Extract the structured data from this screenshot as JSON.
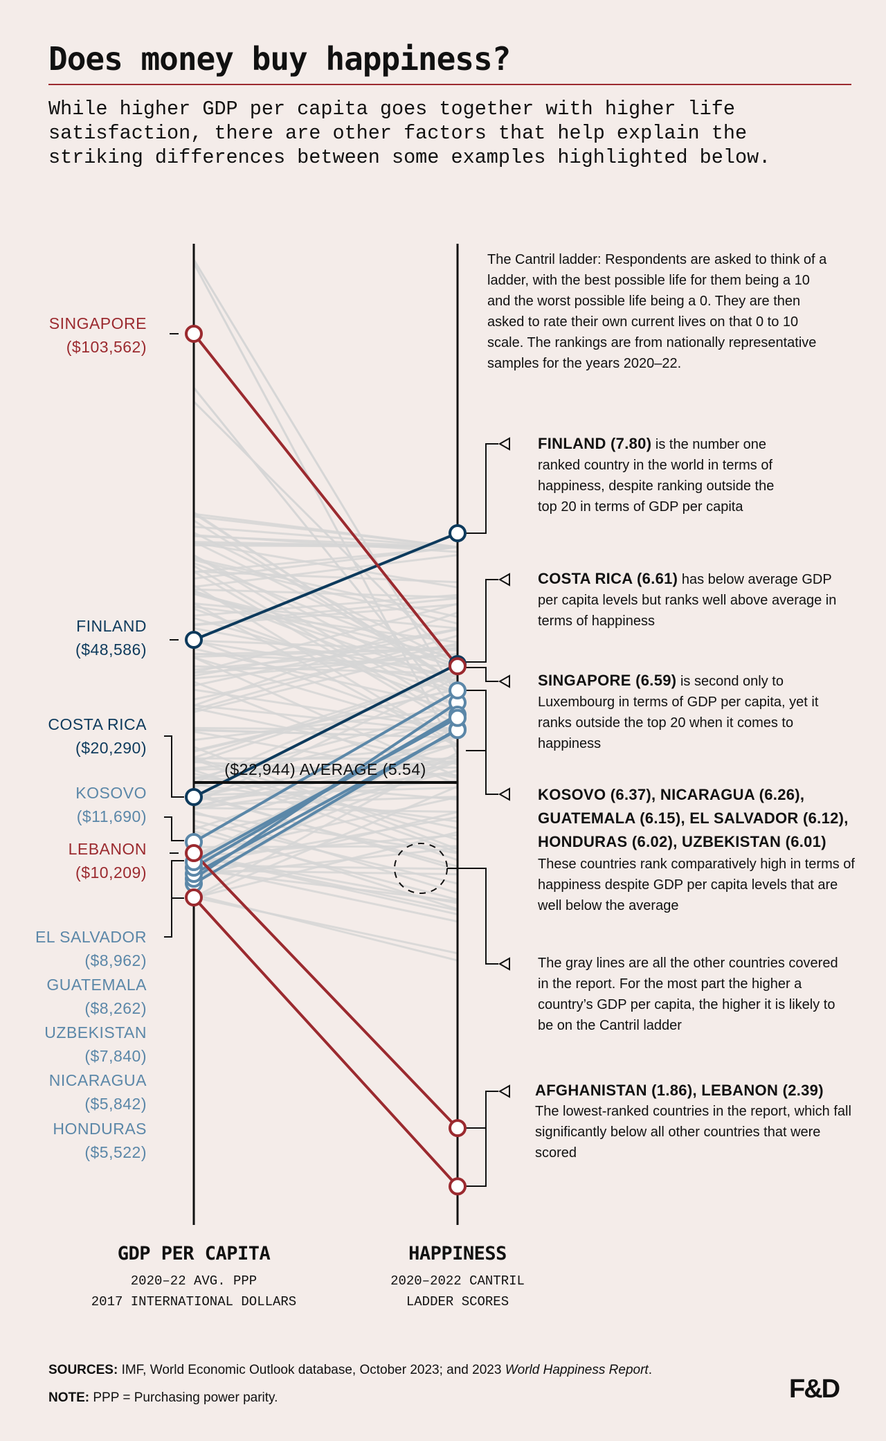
{
  "header": {
    "title": "Does money buy happiness?",
    "subtitle": "While higher GDP per capita goes together with higher life\nsatisfaction, there are other factors that help explain the\nstriking differences between some examples highlighted below."
  },
  "chart_data": {
    "type": "slope",
    "title": "Does money buy happiness?",
    "left_axis": {
      "label": "GDP PER CAPITA",
      "sublabel": "2020–22 AVG. PPP\n2017 INTERNATIONAL DOLLARS"
    },
    "right_axis": {
      "label": "HAPPINESS",
      "sublabel": "2020–2022 CANTRIL\nLADDER SCORES"
    },
    "average": {
      "gdp": 22944,
      "happiness": 5.54,
      "label": "($22,944) AVERAGE (5.54)"
    },
    "colors": {
      "red": "#9b2a2f",
      "navy": "#0d3a5c",
      "steel": "#5b87a8",
      "gray": "#d6d6d6",
      "axis": "#111111"
    },
    "countries": [
      {
        "id": "singapore",
        "name": "SINGAPORE",
        "gdp": 103562,
        "gdp_label": "($103,562)",
        "happiness": 6.59,
        "color": "red"
      },
      {
        "id": "finland",
        "name": "FINLAND",
        "gdp": 48586,
        "gdp_label": "($48,586)",
        "happiness": 7.8,
        "color": "navy"
      },
      {
        "id": "costa_rica",
        "name": "COSTA RICA",
        "gdp": 20290,
        "gdp_label": "($20,290)",
        "happiness": 6.61,
        "color": "navy"
      },
      {
        "id": "kosovo",
        "name": "KOSOVO",
        "gdp": 11690,
        "gdp_label": "($11,690)",
        "happiness": 6.37,
        "color": "steel"
      },
      {
        "id": "lebanon",
        "name": "LEBANON",
        "gdp": 10209,
        "gdp_label": "($10,209)",
        "happiness": 2.39,
        "color": "red"
      },
      {
        "id": "el_salvador",
        "name": "EL SALVADOR",
        "gdp": 8962,
        "gdp_label": "($8,962)",
        "happiness": 6.12,
        "color": "steel"
      },
      {
        "id": "guatemala",
        "name": "GUATEMALA",
        "gdp": 8262,
        "gdp_label": "($8,262)",
        "happiness": 6.15,
        "color": "steel"
      },
      {
        "id": "uzbekistan",
        "name": "UZBEKISTAN",
        "gdp": 7840,
        "gdp_label": "($7,840)",
        "happiness": 6.01,
        "color": "steel"
      },
      {
        "id": "nicaragua",
        "name": "NICARAGUA",
        "gdp": 5842,
        "gdp_label": "($5,842)",
        "happiness": 6.26,
        "color": "steel"
      },
      {
        "id": "honduras",
        "name": "HONDURAS",
        "gdp": 5522,
        "gdp_label": "($5,522)",
        "happiness": 6.02,
        "color": "steel"
      },
      {
        "id": "afghanistan",
        "name": "AFGHANISTAN",
        "gdp": null,
        "gdp_label": null,
        "happiness": 1.86,
        "color": "red"
      }
    ]
  },
  "annotations": {
    "cantril": "The Cantril ladder: Respondents are asked to think of a ladder, with the best possible life for them being a 10 and the worst possible life being a 0. They are then asked to rate their own current lives on that 0 to 10 scale. The rankings are from nationally representative samples for the years 2020–22.",
    "finland": {
      "head": "FINLAND (7.80)",
      "body": " is the number one ranked country in the world in terms of happiness, despite ranking outside the top 20 in terms of GDP per capita"
    },
    "costa_rica": {
      "head": "COSTA RICA (6.61)",
      "body": " has below average GDP per capita levels but ranks well above average in terms of happiness"
    },
    "singapore": {
      "head": "SINGAPORE (6.59)",
      "body": " is second only to Luxembourg in terms of GDP per capita, yet it ranks outside the top 20 when it comes to happiness"
    },
    "group": {
      "head": "KOSOVO (6.37), NICARAGUA (6.26), GUATEMALA (6.15), EL SALVADOR (6.12), HONDURAS (6.02), UZBEKISTAN (6.01)",
      "body": "These countries rank comparatively high in terms of happiness despite GDP per capita levels that are well below the average"
    },
    "gray": "The gray lines are all the other countries covered in the report. For the most part the higher a country’s GDP per capita, the higher it is likely to be on the Cantril ladder",
    "lowest": {
      "head": "AFGHANISTAN (1.86), LEBANON (2.39)",
      "body": "The lowest-ranked countries in the report, which fall significantly below all other countries that were scored"
    }
  },
  "footer": {
    "sources_label": "SOURCES:",
    "sources_text": " IMF, World Economic Outlook database, October 2023; and 2023 ",
    "sources_italic": "World Happiness Report",
    "sources_end": ".",
    "note_label": "NOTE:",
    "note_text": " PPP = Purchasing power parity.",
    "logo": "F&D"
  }
}
